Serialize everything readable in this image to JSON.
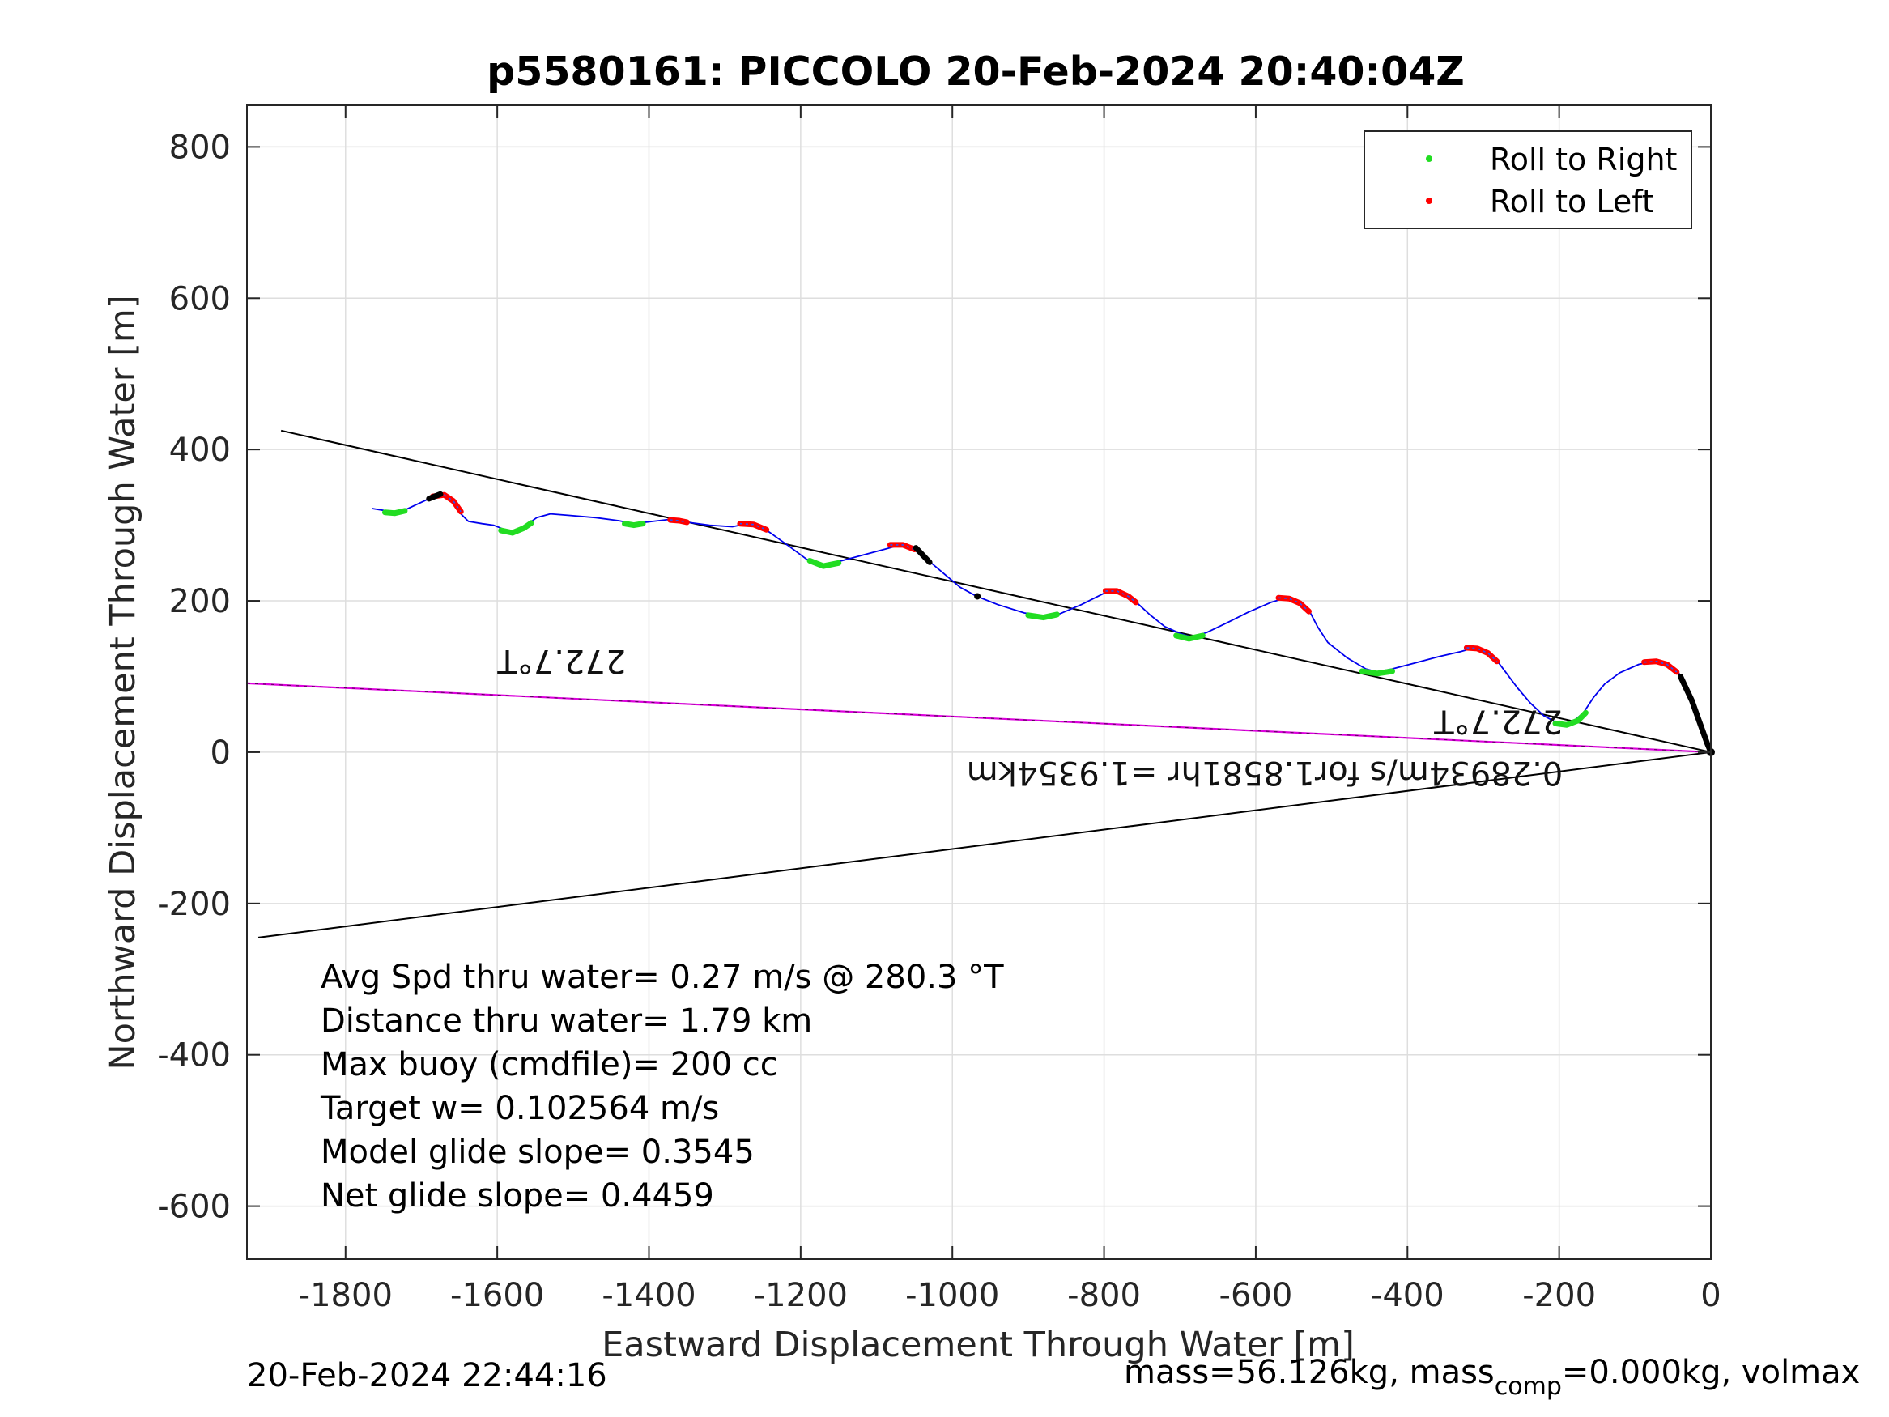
{
  "chart_data": {
    "type": "scatter",
    "title": "p5580161: PICCOLO 20-Feb-2024 20:40:04Z",
    "xlabel": "Eastward Displacement Through Water [m]",
    "ylabel": "Northward Displacement Through Water [m]",
    "xlim": [
      -1930,
      0
    ],
    "ylim": [
      -670,
      855
    ],
    "xticks": [
      -1800,
      -1600,
      -1400,
      -1200,
      -1000,
      -800,
      -600,
      -400,
      -200,
      0
    ],
    "yticks": [
      -600,
      -400,
      -200,
      0,
      200,
      400,
      600,
      800
    ],
    "grid": true,
    "legend_position": "top-right",
    "legend": [
      {
        "label": "Roll to Right",
        "color": "#22dd22"
      },
      {
        "label": "Roll to Left",
        "color": "#ff0000"
      }
    ],
    "colors": {
      "track": "#0000ee",
      "right": "#22dd22",
      "left": "#ff0000",
      "reference": "#000000",
      "current": "#dd00dd"
    },
    "track": [
      [
        -1765,
        322
      ],
      [
        -1740,
        318
      ],
      [
        -1722,
        320
      ],
      [
        -1705,
        328
      ],
      [
        -1690,
        335
      ],
      [
        -1675,
        340
      ],
      [
        -1665,
        338
      ],
      [
        -1655,
        328
      ],
      [
        -1648,
        315
      ],
      [
        -1638,
        305
      ],
      [
        -1620,
        302
      ],
      [
        -1605,
        300
      ],
      [
        -1590,
        294
      ],
      [
        -1580,
        292
      ],
      [
        -1565,
        298
      ],
      [
        -1548,
        310
      ],
      [
        -1530,
        315
      ],
      [
        -1505,
        313
      ],
      [
        -1470,
        310
      ],
      [
        -1440,
        306
      ],
      [
        -1420,
        302
      ],
      [
        -1395,
        305
      ],
      [
        -1370,
        308
      ],
      [
        -1350,
        304
      ],
      [
        -1320,
        300
      ],
      [
        -1290,
        298
      ],
      [
        -1270,
        302
      ],
      [
        -1255,
        300
      ],
      [
        -1240,
        290
      ],
      [
        -1215,
        272
      ],
      [
        -1192,
        255
      ],
      [
        -1170,
        248
      ],
      [
        -1150,
        252
      ],
      [
        -1120,
        260
      ],
      [
        -1090,
        268
      ],
      [
        -1068,
        274
      ],
      [
        -1052,
        272
      ],
      [
        -1040,
        262
      ],
      [
        -1030,
        252
      ],
      [
        -1010,
        235
      ],
      [
        -990,
        218
      ],
      [
        -968,
        206
      ],
      [
        -940,
        195
      ],
      [
        -905,
        184
      ],
      [
        -880,
        180
      ],
      [
        -858,
        183
      ],
      [
        -830,
        195
      ],
      [
        -800,
        210
      ],
      [
        -785,
        214
      ],
      [
        -770,
        208
      ],
      [
        -755,
        196
      ],
      [
        -740,
        182
      ],
      [
        -720,
        166
      ],
      [
        -700,
        157
      ],
      [
        -685,
        152
      ],
      [
        -665,
        158
      ],
      [
        -640,
        170
      ],
      [
        -610,
        185
      ],
      [
        -580,
        198
      ],
      [
        -560,
        204
      ],
      [
        -545,
        200
      ],
      [
        -530,
        188
      ],
      [
        -518,
        165
      ],
      [
        -505,
        145
      ],
      [
        -480,
        125
      ],
      [
        -455,
        110
      ],
      [
        -440,
        106
      ],
      [
        -420,
        110
      ],
      [
        -390,
        118
      ],
      [
        -360,
        126
      ],
      [
        -330,
        133
      ],
      [
        -312,
        138
      ],
      [
        -298,
        134
      ],
      [
        -285,
        125
      ],
      [
        -270,
        105
      ],
      [
        -255,
        85
      ],
      [
        -238,
        65
      ],
      [
        -220,
        48
      ],
      [
        -205,
        40
      ],
      [
        -192,
        38
      ],
      [
        -180,
        42
      ],
      [
        -168,
        52
      ],
      [
        -155,
        72
      ],
      [
        -140,
        90
      ],
      [
        -120,
        105
      ],
      [
        -95,
        116
      ],
      [
        -75,
        120
      ],
      [
        -60,
        118
      ],
      [
        -45,
        108
      ],
      [
        -35,
        95
      ],
      [
        -25,
        70
      ],
      [
        -15,
        42
      ],
      [
        -5,
        12
      ],
      [
        0,
        0
      ]
    ],
    "roll_right": [
      [
        [
          -1748,
          317
        ],
        [
          -1735,
          316
        ],
        [
          -1722,
          319
        ]
      ],
      [
        [
          -1595,
          293
        ],
        [
          -1580,
          290
        ],
        [
          -1565,
          296
        ],
        [
          -1555,
          303
        ]
      ],
      [
        [
          -1432,
          302
        ],
        [
          -1420,
          300
        ],
        [
          -1408,
          302
        ]
      ],
      [
        [
          -1188,
          253
        ],
        [
          -1170,
          246
        ],
        [
          -1150,
          250
        ]
      ],
      [
        [
          -900,
          181
        ],
        [
          -880,
          178
        ],
        [
          -862,
          182
        ]
      ],
      [
        [
          -705,
          154
        ],
        [
          -688,
          150
        ],
        [
          -670,
          154
        ]
      ],
      [
        [
          -460,
          107
        ],
        [
          -440,
          104
        ],
        [
          -420,
          107
        ]
      ],
      [
        [
          -205,
          38
        ],
        [
          -190,
          36
        ],
        [
          -175,
          42
        ],
        [
          -165,
          52
        ]
      ]
    ],
    "roll_left": [
      [
        [
          -1685,
          338
        ],
        [
          -1670,
          340
        ],
        [
          -1658,
          332
        ],
        [
          -1648,
          318
        ]
      ],
      [
        [
          -1372,
          307
        ],
        [
          -1360,
          306
        ],
        [
          -1350,
          304
        ]
      ],
      [
        [
          -1280,
          302
        ],
        [
          -1262,
          301
        ],
        [
          -1245,
          294
        ]
      ],
      [
        [
          -1082,
          274
        ],
        [
          -1065,
          274
        ],
        [
          -1050,
          268
        ]
      ],
      [
        [
          -798,
          213
        ],
        [
          -783,
          213
        ],
        [
          -768,
          206
        ],
        [
          -758,
          198
        ]
      ],
      [
        [
          -570,
          204
        ],
        [
          -556,
          203
        ],
        [
          -542,
          197
        ],
        [
          -530,
          186
        ]
      ],
      [
        [
          -322,
          138
        ],
        [
          -308,
          137
        ],
        [
          -294,
          131
        ],
        [
          -282,
          120
        ]
      ],
      [
        [
          -88,
          119
        ],
        [
          -72,
          120
        ],
        [
          -58,
          116
        ],
        [
          -45,
          106
        ]
      ]
    ],
    "dive_starts": [
      [
        [
          -1690,
          335
        ],
        [
          -1675,
          341
        ]
      ],
      [
        [
          -1048,
          270
        ],
        [
          -1030,
          251
        ]
      ],
      [
        [
          -40,
          100
        ],
        [
          -25,
          68
        ],
        [
          -15,
          40
        ],
        [
          -5,
          12
        ],
        [
          0,
          0
        ]
      ]
    ],
    "markers": [
      [
        -967,
        206
      ]
    ],
    "lines": [
      {
        "kind": "reference",
        "from": [
          -1885,
          425
        ],
        "to": [
          0,
          0
        ]
      },
      {
        "kind": "reference",
        "from": [
          -1915,
          -245
        ],
        "to": [
          0,
          0
        ]
      },
      {
        "kind": "current",
        "from": [
          -1930,
          91
        ],
        "to": [
          0,
          0
        ]
      }
    ],
    "rotated_labels": [
      {
        "text": "272.7°T",
        "x": -1515,
        "y": 135,
        "anchor": "middle"
      },
      {
        "text": "272.7°T",
        "x": -280,
        "y": 55,
        "anchor": "middle"
      },
      {
        "text": "0.28934m/s for1.8581hr =1.9354km",
        "x": -195,
        "y": -13,
        "anchor": "start"
      }
    ],
    "annotations": [
      "Avg Spd thru water=  0.27 m/s @ 280.3 °T",
      "Distance thru water=  1.79 km",
      "Max buoy (cmdfile)= 200 cc",
      "Target w= 0.102564 m/s",
      "Model glide slope= 0.3545",
      "Net glide slope= 0.4459"
    ]
  },
  "footer": {
    "timestamp": "20-Feb-2024 22:44:16",
    "mass_prefix": "mass=56.126kg, mass",
    "mass_sub": "comp",
    "mass_suffix": "=0.000kg, volmax"
  }
}
